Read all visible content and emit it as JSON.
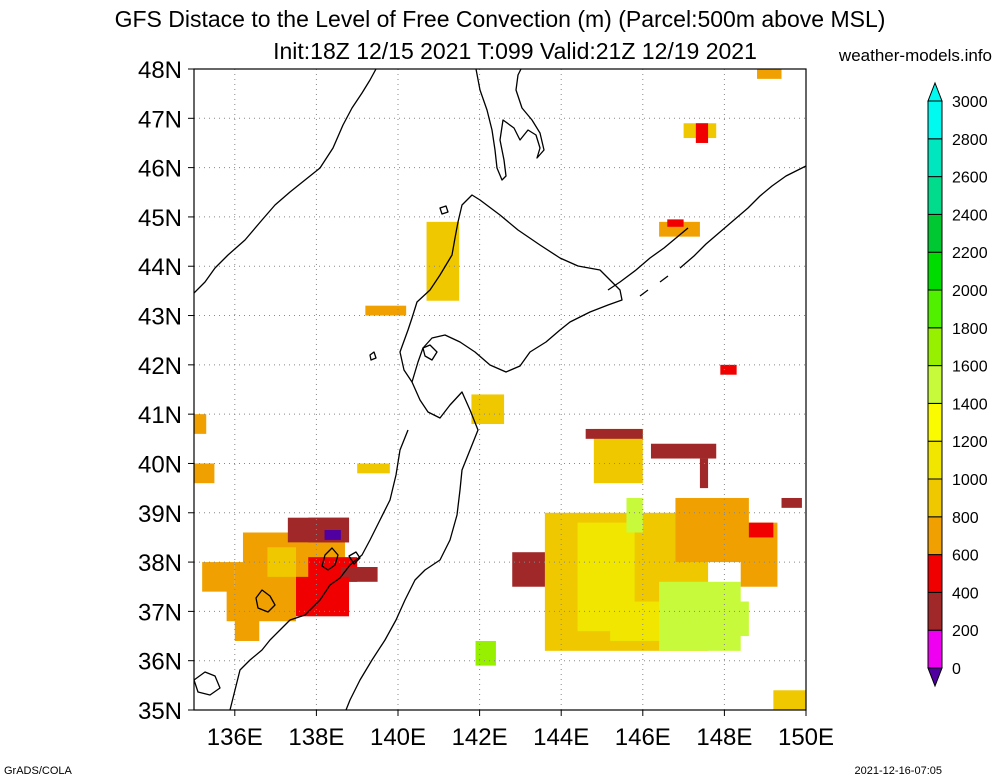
{
  "title": {
    "line1": "GFS Distace to the Level of Free Convection (m) (Parcel:500m above MSL)",
    "line2": "Init:18Z 12/15 2021 T:099 Valid:21Z 12/19 2021",
    "site": "weather-models.info"
  },
  "footer": {
    "left": "GrADS/COLA",
    "right": "2021-12-16-07:05"
  },
  "map": {
    "lon_range": [
      135,
      150
    ],
    "lat_range": [
      35,
      48
    ],
    "lat_labels": [
      "35N",
      "36N",
      "37N",
      "38N",
      "39N",
      "40N",
      "41N",
      "42N",
      "43N",
      "44N",
      "45N",
      "46N",
      "47N",
      "48N"
    ],
    "lon_labels": [
      {
        "lon": 136,
        "label": "136E"
      },
      {
        "lon": 138,
        "label": "138E"
      },
      {
        "lon": 140,
        "label": "140E"
      },
      {
        "lon": 142,
        "label": "142E"
      },
      {
        "lon": 144,
        "label": "144E"
      },
      {
        "lon": 146,
        "label": "146E"
      },
      {
        "lon": 148,
        "label": "148E"
      },
      {
        "lon": 150,
        "label": "150E"
      }
    ]
  },
  "colorbar": {
    "levels": [
      "0",
      "200",
      "400",
      "600",
      "800",
      "1000",
      "1200",
      "1400",
      "1600",
      "1800",
      "2000",
      "2200",
      "2400",
      "2600",
      "2800",
      "3000"
    ],
    "colors": [
      "#5000a0",
      "#f000f0",
      "#a02828",
      "#f00000",
      "#f0a000",
      "#f0c800",
      "#f0e600",
      "#fafa00",
      "#c8fa3c",
      "#96f000",
      "#50f000",
      "#00dc00",
      "#00c832",
      "#00dc8c",
      "#00e6be",
      "#00faf0"
    ]
  },
  "chart_data": {
    "type": "heatmap",
    "title": "GFS Distace to the Level of Free Convection (m) (Parcel:500m above MSL)",
    "subtitle": "Init:18Z 12/15 2021 T:099 Valid:21Z 12/19 2021",
    "units": "m",
    "xlim": [
      135,
      150
    ],
    "ylim": [
      35,
      48
    ],
    "cells": [
      {
        "lon": [
          136.0,
          136.6
        ],
        "lat": [
          36.4,
          38.0
        ],
        "v": 800
      },
      {
        "lon": [
          135.8,
          137.5
        ],
        "lat": [
          36.8,
          37.5
        ],
        "v": 900
      },
      {
        "lon": [
          136.2,
          138.7
        ],
        "lat": [
          37.0,
          38.6
        ],
        "v": 800
      },
      {
        "lon": [
          135.2,
          136.0
        ],
        "lat": [
          37.4,
          38.0
        ],
        "v": 900
      },
      {
        "lon": [
          136.8,
          137.5
        ],
        "lat": [
          37.7,
          38.3
        ],
        "v": 1000
      },
      {
        "lon": [
          137.3,
          138.8
        ],
        "lat": [
          38.4,
          38.9
        ],
        "v": 500
      },
      {
        "lon": [
          137.8,
          138.8
        ],
        "lat": [
          38.4,
          38.9
        ],
        "v": 400
      },
      {
        "lon": [
          138.2,
          138.6
        ],
        "lat": [
          38.45,
          38.65
        ],
        "v": 150
      },
      {
        "lon": [
          137.8,
          139.0
        ],
        "lat": [
          37.6,
          38.1
        ],
        "v": 600
      },
      {
        "lon": [
          138.6,
          139.5
        ],
        "lat": [
          37.6,
          37.9
        ],
        "v": 500
      },
      {
        "lon": [
          137.5,
          138.8
        ],
        "lat": [
          36.9,
          37.7
        ],
        "v": 700
      },
      {
        "lon": [
          135.0,
          135.5
        ],
        "lat": [
          39.6,
          40.0
        ],
        "v": 900
      },
      {
        "lon": [
          139.0,
          139.8
        ],
        "lat": [
          39.8,
          40.0
        ],
        "v": 1000
      },
      {
        "lon": [
          139.2,
          140.2
        ],
        "lat": [
          43.0,
          43.2
        ],
        "v": 900
      },
      {
        "lon": [
          140.7,
          141.5
        ],
        "lat": [
          43.3,
          44.9
        ],
        "v": 1000
      },
      {
        "lon": [
          141.8,
          142.6
        ],
        "lat": [
          40.8,
          41.4
        ],
        "v": 1000
      },
      {
        "lon": [
          142.8,
          144.2
        ],
        "lat": [
          37.5,
          38.2
        ],
        "v": 400
      },
      {
        "lon": [
          143.7,
          144.8
        ],
        "lat": [
          37.8,
          38.2
        ],
        "v": 500
      },
      {
        "lon": [
          144.8,
          146.0
        ],
        "lat": [
          39.6,
          40.7
        ],
        "v": 1100
      },
      {
        "lon": [
          143.6,
          147.6
        ],
        "lat": [
          36.2,
          39.0
        ],
        "v": 1100
      },
      {
        "lon": [
          144.4,
          145.8
        ],
        "lat": [
          36.6,
          38.8
        ],
        "v": 1200
      },
      {
        "lon": [
          145.2,
          147.0
        ],
        "lat": [
          36.4,
          37.2
        ],
        "v": 1300
      },
      {
        "lon": [
          146.4,
          148.4
        ],
        "lat": [
          36.2,
          37.6
        ],
        "v": 1600
      },
      {
        "lon": [
          147.0,
          148.6
        ],
        "lat": [
          36.5,
          37.2
        ],
        "v": 1700
      },
      {
        "lon": [
          141.9,
          142.4
        ],
        "lat": [
          35.9,
          36.4
        ],
        "v": 1800
      },
      {
        "lon": [
          145.6,
          146.0
        ],
        "lat": [
          38.6,
          39.3
        ],
        "v": 1700
      },
      {
        "lon": [
          146.8,
          148.6
        ],
        "lat": [
          38.0,
          39.3
        ],
        "v": 900
      },
      {
        "lon": [
          148.4,
          149.3
        ],
        "lat": [
          37.5,
          38.8
        ],
        "v": 900
      },
      {
        "lon": [
          144.6,
          146.0
        ],
        "lat": [
          40.5,
          40.7
        ],
        "v": 500
      },
      {
        "lon": [
          146.2,
          147.8
        ],
        "lat": [
          40.1,
          40.4
        ],
        "v": 400
      },
      {
        "lon": [
          147.4,
          147.6
        ],
        "lat": [
          39.5,
          40.1
        ],
        "v": 500
      },
      {
        "lon": [
          148.6,
          149.2
        ],
        "lat": [
          38.5,
          38.8
        ],
        "v": 600
      },
      {
        "lon": [
          149.4,
          149.9
        ],
        "lat": [
          39.1,
          39.3
        ],
        "v": 500
      },
      {
        "lon": [
          146.4,
          147.4
        ],
        "lat": [
          44.6,
          44.9
        ],
        "v": 900
      },
      {
        "lon": [
          146.6,
          147.0
        ],
        "lat": [
          44.8,
          44.95
        ],
        "v": 600
      },
      {
        "lon": [
          147.0,
          147.8
        ],
        "lat": [
          46.6,
          46.9
        ],
        "v": 1000
      },
      {
        "lon": [
          147.3,
          147.6
        ],
        "lat": [
          46.5,
          46.9
        ],
        "v": 600
      },
      {
        "lon": [
          147.9,
          148.3
        ],
        "lat": [
          41.8,
          42.0
        ],
        "v": 600
      },
      {
        "lon": [
          148.8,
          149.4
        ],
        "lat": [
          47.8,
          48.0
        ],
        "v": 900
      },
      {
        "lon": [
          149.2,
          150.0
        ],
        "lat": [
          35.0,
          35.4
        ],
        "v": 1000
      },
      {
        "lon": [
          135.0,
          135.3
        ],
        "lat": [
          40.6,
          41.0
        ],
        "v": 900
      }
    ]
  }
}
